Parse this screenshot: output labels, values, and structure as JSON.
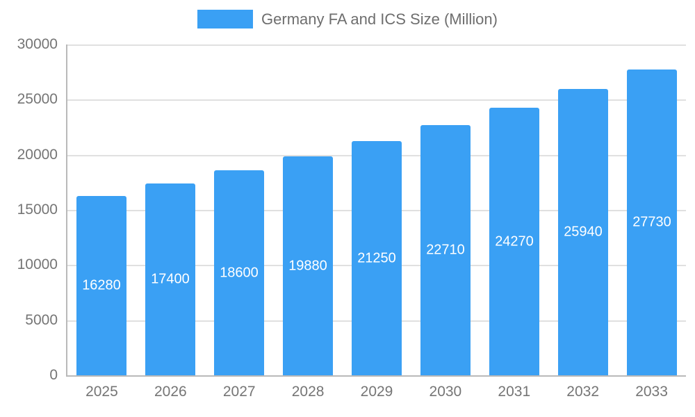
{
  "chart_data": {
    "type": "bar",
    "title": "Germany FA and ICS Size (Million)",
    "categories": [
      "2025",
      "2026",
      "2027",
      "2028",
      "2029",
      "2030",
      "2031",
      "2032",
      "2033"
    ],
    "values": [
      16280,
      17400,
      18600,
      19880,
      21250,
      22710,
      24270,
      25940,
      27730
    ],
    "xlabel": "",
    "ylabel": "",
    "ylim": [
      0,
      30000
    ],
    "ytick_step": 5000,
    "ytick_labels": [
      "0",
      "5000",
      "10000",
      "15000",
      "20000",
      "25000",
      "30000"
    ],
    "grid": true,
    "legend_position": "top",
    "value_labels_shown": true,
    "colors": {
      "bar": "#3aa0f4",
      "value_label": "#ffffff",
      "axis_label": "#757575",
      "title": "#6e6e6e",
      "gridline": "#e0e0e0",
      "axis_line": "#b9b9b9",
      "background": "#ffffff"
    }
  }
}
